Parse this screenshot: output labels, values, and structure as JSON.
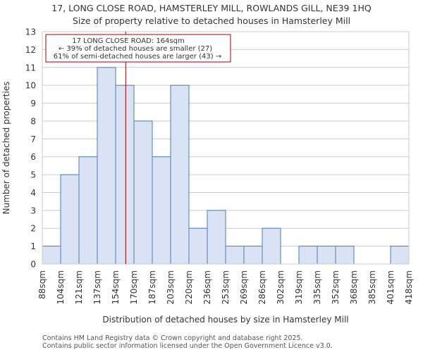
{
  "chart_data": {
    "type": "bar",
    "title": "17, LONG CLOSE ROAD, HAMSTERLEY MILL, ROWLANDS GILL, NE39 1HQ",
    "subtitle": "Size of property relative to detached houses in Hamsterley Mill",
    "xlabel": "Distribution of detached houses by size in Hamsterley Mill",
    "ylabel": "Number of detached properties",
    "ylim": [
      0,
      13
    ],
    "yticks": [
      0,
      1,
      2,
      3,
      4,
      5,
      6,
      7,
      8,
      9,
      10,
      11,
      12,
      13
    ],
    "bin_edges": [
      "88sqm",
      "104sqm",
      "121sqm",
      "137sqm",
      "154sqm",
      "170sqm",
      "187sqm",
      "203sqm",
      "220sqm",
      "236sqm",
      "253sqm",
      "269sqm",
      "286sqm",
      "302sqm",
      "319sqm",
      "335sqm",
      "352sqm",
      "368sqm",
      "385sqm",
      "401sqm",
      "418sqm"
    ],
    "values": [
      1,
      5,
      6,
      11,
      10,
      8,
      6,
      10,
      2,
      3,
      1,
      1,
      2,
      0,
      1,
      1,
      1,
      0,
      0,
      1
    ],
    "bar_color": "#dae3f3",
    "bar_edge_color": "#4a7bbf",
    "marker": {
      "bin_position": 4.55,
      "color": "#aa0000",
      "lines": [
        "17 LONG CLOSE ROAD: 164sqm",
        "← 39% of detached houses are smaller (27)",
        "61% of semi-detached houses are larger (43) →"
      ]
    }
  },
  "footer": {
    "line1": "Contains HM Land Registry data © Crown copyright and database right 2025.",
    "line2": "Contains public sector information licensed under the Open Government Licence v3.0."
  }
}
